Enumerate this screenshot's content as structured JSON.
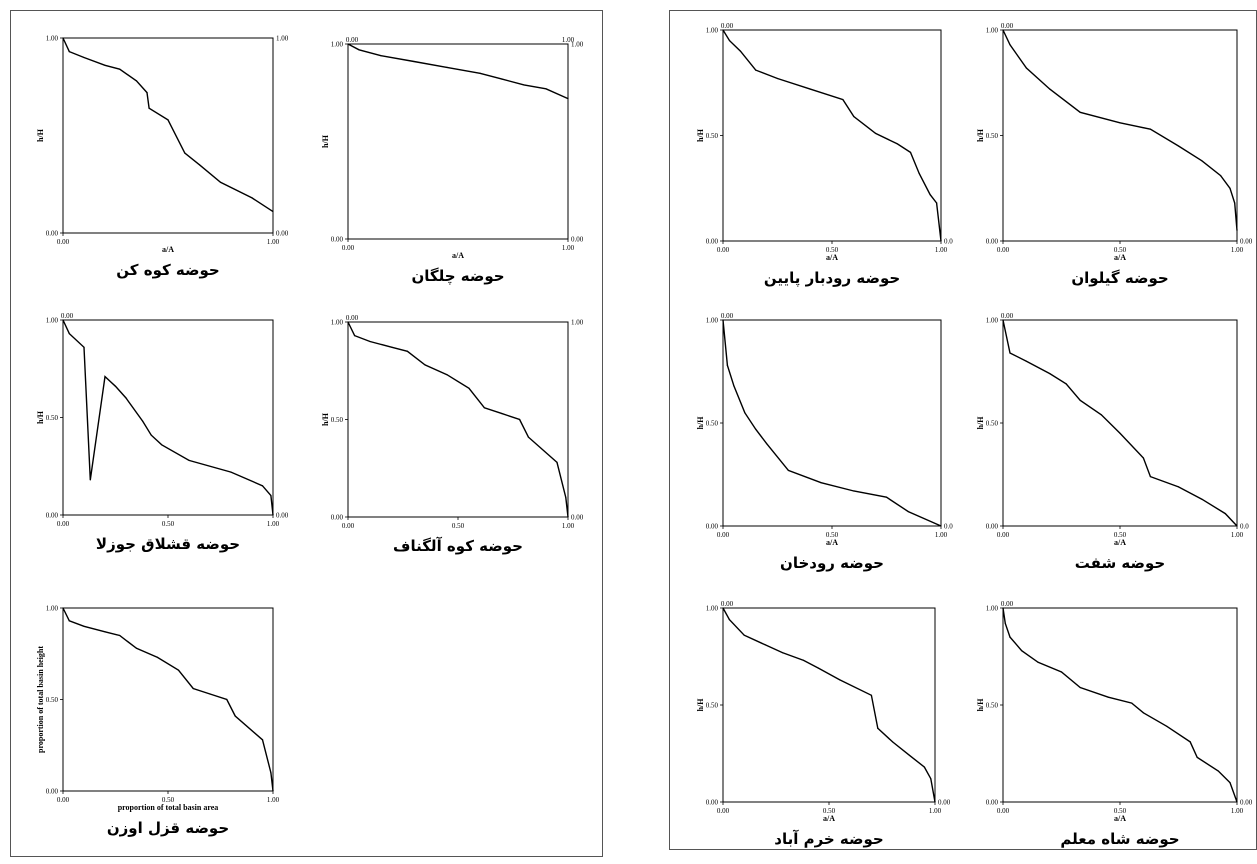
{
  "chart_data": [
    {
      "type": "line",
      "caption": "حوضه کوه کن",
      "xlabel": "a/A",
      "ylabel": "h/H",
      "x": [
        0,
        0.03,
        0.1,
        0.2,
        0.27,
        0.35,
        0.4,
        0.41,
        0.5,
        0.58,
        0.65,
        0.75,
        0.9,
        1.0
      ],
      "y": [
        1.0,
        0.93,
        0.9,
        0.86,
        0.84,
        0.78,
        0.72,
        0.64,
        0.58,
        0.41,
        0.35,
        0.26,
        0.18,
        0.11
      ],
      "xlim": [
        0,
        1
      ],
      "ylim": [
        0,
        1
      ],
      "x_ticks": [
        "0.00",
        "1.00"
      ],
      "y_ticks": [
        "0.00",
        "1.00"
      ],
      "right_ticks": [
        "0.00",
        "1.00"
      ]
    },
    {
      "type": "line",
      "caption": "حوضه چلگان",
      "xlabel": "a/A",
      "ylabel": "h/H",
      "x": [
        0,
        0.05,
        0.15,
        0.3,
        0.45,
        0.6,
        0.7,
        0.8,
        0.9,
        1.0
      ],
      "y": [
        1.0,
        0.97,
        0.94,
        0.91,
        0.88,
        0.85,
        0.82,
        0.79,
        0.77,
        0.72
      ],
      "xlim": [
        0,
        1
      ],
      "ylim": [
        0,
        1
      ],
      "x_ticks": [
        "0.00",
        "1.00"
      ],
      "y_ticks": [
        "0.00",
        "1.00"
      ],
      "right_ticks": [
        "0.00",
        "1.00"
      ],
      "top_ticks": [
        "0.00",
        "1.00"
      ]
    },
    {
      "type": "line",
      "caption": "حوضه قشلاق جوزلا",
      "xlabel": "",
      "ylabel": "h/H",
      "x": [
        0,
        0.03,
        0.1,
        0.13,
        0.2,
        0.25,
        0.3,
        0.38,
        0.42,
        0.47,
        0.6,
        0.8,
        0.95,
        0.99,
        1.0
      ],
      "y": [
        1.0,
        0.93,
        0.86,
        0.18,
        0.71,
        0.66,
        0.6,
        0.48,
        0.41,
        0.36,
        0.28,
        0.22,
        0.15,
        0.1,
        0.0
      ],
      "xlim": [
        0,
        1
      ],
      "ylim": [
        0,
        1
      ],
      "x_ticks": [
        "0.00",
        "0.50",
        "1.00"
      ],
      "y_ticks": [
        "0.00",
        "0.50",
        "1.00"
      ],
      "right_ticks": [
        "0.00"
      ],
      "top_ticks": [
        "0.00"
      ]
    },
    {
      "type": "line",
      "caption": "حوضه کوه آلگناف",
      "xlabel": "",
      "ylabel": "h/H",
      "x": [
        0,
        0.03,
        0.1,
        0.2,
        0.27,
        0.35,
        0.45,
        0.55,
        0.62,
        0.7,
        0.78,
        0.82,
        0.95,
        0.99,
        1.0
      ],
      "y": [
        1.0,
        0.93,
        0.9,
        0.87,
        0.85,
        0.78,
        0.73,
        0.66,
        0.56,
        0.53,
        0.5,
        0.41,
        0.28,
        0.1,
        0.0
      ],
      "xlim": [
        0,
        1
      ],
      "ylim": [
        0,
        1
      ],
      "x_ticks": [
        "0.00",
        "0.50",
        "1.00"
      ],
      "y_ticks": [
        "0.00",
        "0.50",
        "1.00"
      ],
      "right_ticks": [
        "0.00",
        "1.00"
      ],
      "top_ticks": [
        "0.00"
      ]
    },
    {
      "type": "line",
      "caption": "حوضه قزل اوزن",
      "xlabel": "proportion of total basin area",
      "ylabel": "proportion of total basin height",
      "x": [
        0,
        0.03,
        0.1,
        0.2,
        0.27,
        0.35,
        0.45,
        0.55,
        0.62,
        0.7,
        0.78,
        0.82,
        0.95,
        0.99,
        1.0
      ],
      "y": [
        1.0,
        0.93,
        0.9,
        0.87,
        0.85,
        0.78,
        0.73,
        0.66,
        0.56,
        0.53,
        0.5,
        0.41,
        0.28,
        0.1,
        0.0
      ],
      "xlim": [
        0,
        1
      ],
      "ylim": [
        0,
        1
      ],
      "x_ticks": [
        "0.00",
        "0.50",
        "1.00"
      ],
      "y_ticks": [
        "0.00",
        "0.50",
        "1.00"
      ],
      "right_ticks": [],
      "top_ticks": []
    },
    {
      "type": "line",
      "caption": "حوضه رودبار پایین",
      "xlabel": "a/A",
      "ylabel": "h/H",
      "x": [
        0,
        0.03,
        0.08,
        0.15,
        0.25,
        0.4,
        0.55,
        0.6,
        0.7,
        0.8,
        0.86,
        0.9,
        0.95,
        0.98,
        1.0
      ],
      "y": [
        1.0,
        0.95,
        0.9,
        0.81,
        0.77,
        0.72,
        0.67,
        0.59,
        0.51,
        0.46,
        0.42,
        0.32,
        0.22,
        0.18,
        0.0
      ],
      "xlim": [
        0,
        1
      ],
      "ylim": [
        0,
        1
      ],
      "x_ticks": [
        "0.00",
        "0.50",
        "1.00"
      ],
      "y_ticks": [
        "0.00",
        "0.50",
        "1.00"
      ],
      "right_ticks": [
        "0.0"
      ],
      "top_ticks": [
        "0.00"
      ]
    },
    {
      "type": "line",
      "caption": "حوضه گیلوان",
      "xlabel": "a/A",
      "ylabel": "h/H",
      "x": [
        0,
        0.03,
        0.1,
        0.2,
        0.33,
        0.5,
        0.63,
        0.75,
        0.85,
        0.93,
        0.97,
        0.99,
        1.0
      ],
      "y": [
        1.0,
        0.93,
        0.82,
        0.72,
        0.61,
        0.56,
        0.53,
        0.45,
        0.38,
        0.31,
        0.25,
        0.18,
        0.05
      ],
      "xlim": [
        0,
        1
      ],
      "ylim": [
        0,
        1
      ],
      "x_ticks": [
        "0.00",
        "0.50",
        "1.00"
      ],
      "y_ticks": [
        "0.00",
        "0.50",
        "1.00"
      ],
      "right_ticks": [
        "0.00"
      ],
      "top_ticks": [
        "0.00"
      ]
    },
    {
      "type": "line",
      "caption": "حوضه رودخان",
      "xlabel": "a/A",
      "ylabel": "h/H",
      "x": [
        0,
        0.02,
        0.05,
        0.1,
        0.15,
        0.2,
        0.3,
        0.45,
        0.6,
        0.75,
        0.85,
        1.0
      ],
      "y": [
        1.0,
        0.78,
        0.68,
        0.55,
        0.47,
        0.4,
        0.27,
        0.21,
        0.17,
        0.14,
        0.07,
        0.0
      ],
      "xlim": [
        0,
        1
      ],
      "ylim": [
        0,
        1
      ],
      "x_ticks": [
        "0.00",
        "0.50",
        "1.00"
      ],
      "y_ticks": [
        "0.00",
        "0.50",
        "1.00"
      ],
      "right_ticks": [
        "0.0"
      ],
      "top_ticks": [
        "0.00"
      ]
    },
    {
      "type": "line",
      "caption": "حوضه شفت",
      "xlabel": "a/A",
      "ylabel": "h/H",
      "x": [
        0,
        0.03,
        0.1,
        0.2,
        0.27,
        0.33,
        0.42,
        0.5,
        0.6,
        0.63,
        0.75,
        0.85,
        0.95,
        1.0
      ],
      "y": [
        1.0,
        0.84,
        0.8,
        0.74,
        0.69,
        0.61,
        0.54,
        0.45,
        0.33,
        0.24,
        0.19,
        0.13,
        0.06,
        0.0
      ],
      "xlim": [
        0,
        1
      ],
      "ylim": [
        0,
        1
      ],
      "x_ticks": [
        "0.00",
        "0.50",
        "1.00"
      ],
      "y_ticks": [
        "0.00",
        "0.50",
        "1.00"
      ],
      "right_ticks": [
        "0.0"
      ],
      "top_ticks": [
        "0.00"
      ]
    },
    {
      "type": "line",
      "caption": "حوضه خرم آباد",
      "xlabel": "a/A",
      "ylabel": "h/H",
      "x": [
        0,
        0.03,
        0.1,
        0.2,
        0.28,
        0.38,
        0.45,
        0.55,
        0.7,
        0.73,
        0.8,
        0.88,
        0.95,
        0.98,
        1.0
      ],
      "y": [
        1.0,
        0.94,
        0.86,
        0.81,
        0.77,
        0.73,
        0.69,
        0.63,
        0.55,
        0.38,
        0.31,
        0.24,
        0.18,
        0.12,
        0.0
      ],
      "xlim": [
        0,
        1
      ],
      "ylim": [
        0,
        1
      ],
      "x_ticks": [
        "0.00",
        "0.50",
        "1.00"
      ],
      "y_ticks": [
        "0.00",
        "0.50",
        "1.00"
      ],
      "right_ticks": [
        "0.00"
      ],
      "top_ticks": [
        "0.00"
      ]
    },
    {
      "type": "line",
      "caption": "حوضه شاه معلم",
      "xlabel": "a/A",
      "ylabel": "h/H",
      "x": [
        0,
        0.01,
        0.03,
        0.08,
        0.15,
        0.25,
        0.33,
        0.45,
        0.55,
        0.6,
        0.7,
        0.8,
        0.83,
        0.92,
        0.97,
        1.0
      ],
      "y": [
        1.0,
        0.92,
        0.85,
        0.78,
        0.72,
        0.67,
        0.59,
        0.54,
        0.51,
        0.46,
        0.39,
        0.31,
        0.23,
        0.16,
        0.1,
        0.0
      ],
      "xlim": [
        0,
        1
      ],
      "ylim": [
        0,
        1
      ],
      "x_ticks": [
        "0.00",
        "0.50",
        "1.00"
      ],
      "y_ticks": [
        "0.00",
        "0.50",
        "1.00"
      ],
      "right_ticks": [
        "0.00"
      ],
      "top_ticks": [
        "0.00"
      ]
    }
  ]
}
